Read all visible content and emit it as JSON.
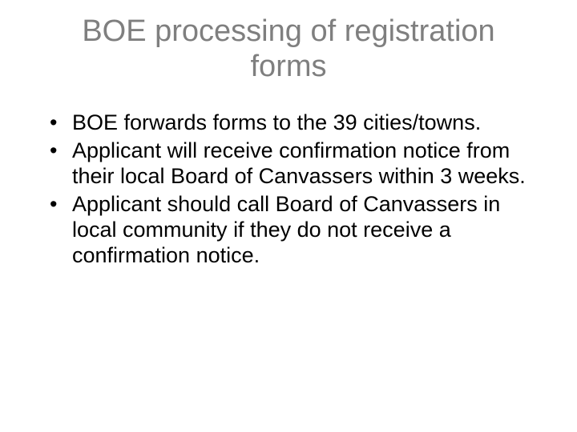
{
  "slide": {
    "title": "BOE processing of registration forms",
    "title_color": "#7f7f7f",
    "title_fontsize": 38,
    "background_color": "#ffffff",
    "body_fontsize": 27,
    "body_color": "#000000",
    "bullets": [
      "BOE forwards forms to the 39 cities/towns.",
      "Applicant will receive confirmation notice from their local Board of Canvassers within 3 weeks.",
      "Applicant should call Board of Canvassers in local community if they do not receive a confirmation notice."
    ]
  }
}
